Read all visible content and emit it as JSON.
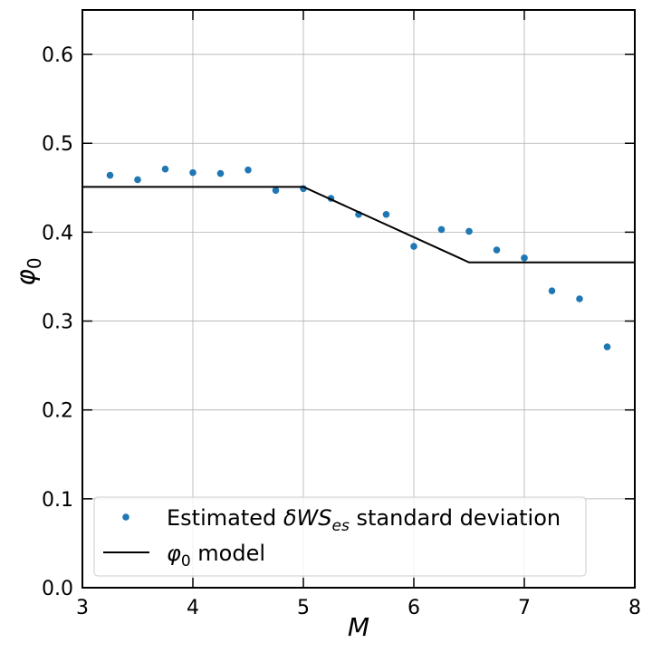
{
  "chart_data": {
    "type": "scatter",
    "xlabel": "M",
    "ylabel_symbol": "φ",
    "ylabel_sub": "0",
    "xlim": [
      3,
      8
    ],
    "ylim": [
      0,
      0.65
    ],
    "x_ticks": [
      3,
      4,
      5,
      6,
      7,
      8
    ],
    "y_ticks": [
      0.0,
      0.1,
      0.2,
      0.3,
      0.4,
      0.5,
      0.6
    ],
    "x_tick_labels": [
      "3",
      "4",
      "5",
      "6",
      "7",
      "8"
    ],
    "y_tick_labels": [
      "0.0",
      "0.1",
      "0.2",
      "0.3",
      "0.4",
      "0.5",
      "0.6"
    ],
    "grid": true,
    "legend_position": "lower-left",
    "series": [
      {
        "name": "Estimated δWS_es standard deviation",
        "kind": "scatter",
        "color": "#1f77b4",
        "x": [
          3.25,
          3.5,
          3.75,
          4.0,
          4.25,
          4.5,
          4.75,
          5.0,
          5.25,
          5.5,
          5.75,
          6.0,
          6.25,
          6.5,
          6.75,
          7.0,
          7.25,
          7.5,
          7.75
        ],
        "y": [
          0.464,
          0.459,
          0.471,
          0.467,
          0.466,
          0.47,
          0.447,
          0.449,
          0.438,
          0.42,
          0.42,
          0.384,
          0.403,
          0.401,
          0.38,
          0.371,
          0.334,
          0.325,
          0.271
        ]
      },
      {
        "name": "φ0 model",
        "kind": "line",
        "color": "#000000",
        "x": [
          3.0,
          5.0,
          6.5,
          8.0
        ],
        "y": [
          0.451,
          0.451,
          0.366,
          0.366
        ]
      }
    ],
    "legend": {
      "scatter": {
        "pre": "Estimated ",
        "math": "δWS",
        "sub": "es",
        "post": " standard deviation"
      },
      "line": {
        "math": "φ",
        "sub": "0",
        "post": " model"
      }
    }
  }
}
